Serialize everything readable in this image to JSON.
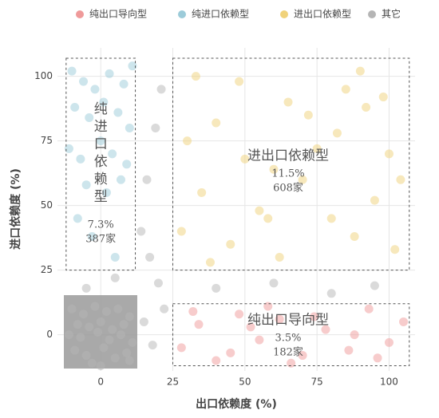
{
  "chart_data": {
    "type": "scatter",
    "x_label": "出口依赖度 (%)",
    "y_label": "进口依赖度 (%)",
    "xlim": [
      -15,
      109
    ],
    "ylim": [
      -14,
      111
    ],
    "xticks": [
      0,
      25,
      50,
      75,
      100
    ],
    "yticks": [
      0,
      25,
      50,
      75,
      100
    ],
    "grid": true,
    "legend": "top",
    "series": [
      {
        "name": "纯出口导向型",
        "color": "#ef9a9a",
        "x": [
          28,
          34,
          40,
          48,
          55,
          62,
          70,
          78,
          86,
          93,
          100,
          105,
          32,
          45,
          58,
          66,
          74,
          88,
          96,
          52
        ],
        "values": [
          -5,
          4,
          -10,
          8,
          -2,
          6,
          -8,
          2,
          -6,
          10,
          -3,
          5,
          9,
          -7,
          11,
          -11,
          7,
          0,
          -9,
          3
        ]
      },
      {
        "name": "纯进口依赖型",
        "color": "#9ccbd9",
        "x": [
          -10,
          -6,
          -2,
          3,
          8,
          11,
          -9,
          -4,
          1,
          6,
          10,
          -11,
          -7,
          0,
          4,
          9,
          -5,
          2,
          7,
          -8,
          -3,
          5
        ],
        "values": [
          102,
          98,
          95,
          101,
          97,
          104,
          88,
          84,
          90,
          86,
          80,
          72,
          68,
          75,
          70,
          66,
          58,
          55,
          60,
          45,
          38,
          30
        ]
      },
      {
        "name": "进出口依赖型",
        "color": "#f0d27a",
        "x": [
          28,
          35,
          45,
          55,
          62,
          70,
          80,
          88,
          95,
          102,
          30,
          40,
          50,
          65,
          75,
          85,
          92,
          100,
          33,
          48,
          58,
          72,
          90,
          104,
          38,
          60,
          82,
          98
        ],
        "values": [
          40,
          55,
          35,
          48,
          30,
          60,
          45,
          38,
          52,
          33,
          75,
          82,
          68,
          90,
          72,
          95,
          88,
          70,
          100,
          98,
          45,
          85,
          102,
          60,
          28,
          64,
          78,
          92
        ]
      },
      {
        "name": "其它",
        "color": "#b5b5b5",
        "x": [
          -10,
          -6,
          -2,
          2,
          6,
          10,
          -8,
          -4,
          0,
          4,
          8,
          -11,
          -7,
          -1,
          3,
          7,
          11,
          -9,
          -5,
          1,
          5,
          9,
          -3,
          15,
          18,
          20,
          14,
          22,
          16,
          19,
          40,
          60,
          80,
          95,
          5,
          -5,
          0,
          10,
          17,
          21
        ],
        "values": [
          10,
          8,
          11,
          9,
          10,
          7,
          4,
          3,
          5,
          2,
          4,
          0,
          -1,
          1,
          -2,
          0,
          -3,
          -6,
          -8,
          -5,
          -9,
          -7,
          -11,
          5,
          -4,
          20,
          40,
          10,
          60,
          80,
          18,
          20,
          16,
          19,
          22,
          18,
          -12,
          -10,
          30,
          95
        ]
      }
    ],
    "annotations": [
      {
        "label": "纯进口依赖型",
        "share": "7.3%",
        "count": "387家"
      },
      {
        "label": "进出口依赖型",
        "share": "11.5%",
        "count": "608家"
      },
      {
        "label": "纯出口导向型",
        "share": "3.5%",
        "count": "182家"
      }
    ]
  }
}
